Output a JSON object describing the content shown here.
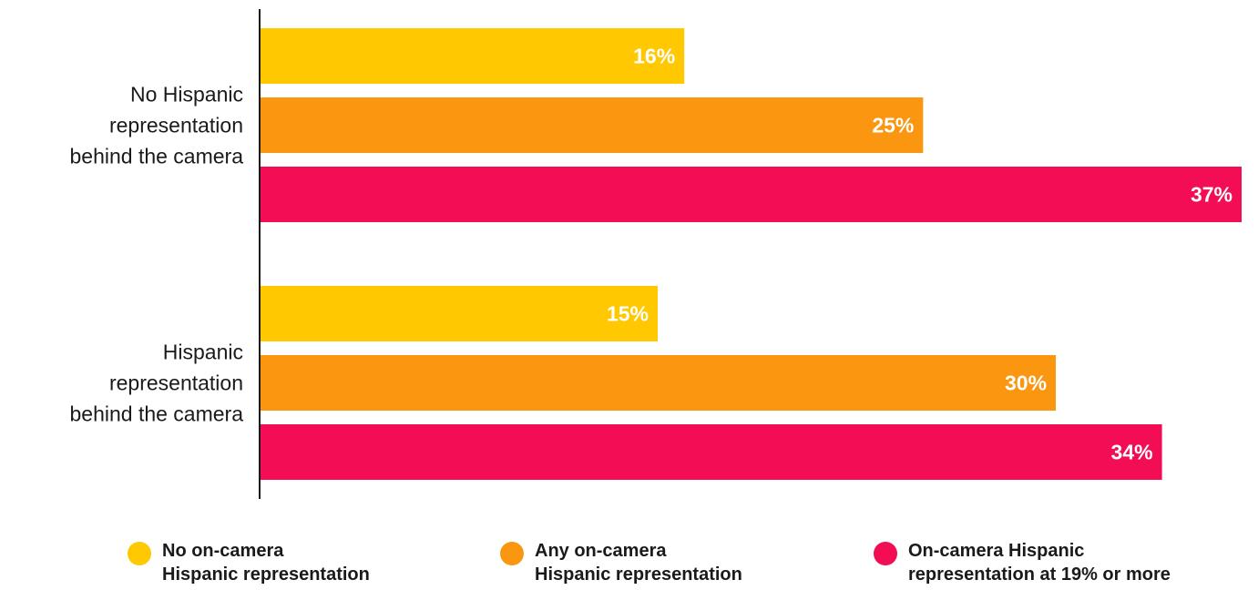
{
  "chart_data": {
    "type": "bar",
    "orientation": "horizontal",
    "categories": [
      "No Hispanic\nrepresentation\nbehind the camera",
      "Hispanic\nrepresentation\nbehind the camera"
    ],
    "series": [
      {
        "name": "No on-camera\nHispanic representation",
        "color": "#FFC800",
        "values": [
          16,
          15
        ]
      },
      {
        "name": "Any on-camera\nHispanic representation",
        "color": "#FA9610",
        "values": [
          25,
          30
        ]
      },
      {
        "name": "On-camera Hispanic\nrepresentation at 19% or more",
        "color": "#F20D55",
        "values": [
          37,
          34
        ]
      }
    ],
    "value_suffix": "%",
    "xlim": [
      0,
      38
    ],
    "grid": false,
    "legend_position": "bottom"
  }
}
